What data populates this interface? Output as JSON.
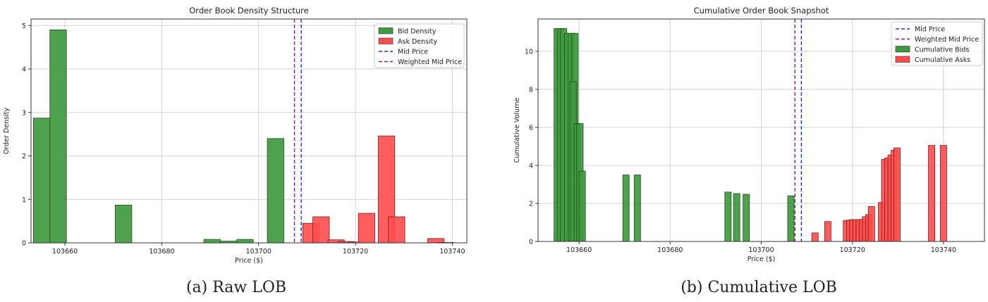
{
  "figure": {
    "captions": [
      "(a) Raw LOB",
      "(b) Cumulative LOB"
    ]
  },
  "colors": {
    "bid": "#3f9a3f",
    "bid_dark": "#2f7a2f",
    "ask": "#ff4c4c",
    "ask_dark": "#e03030",
    "mid": "#1f2fe0",
    "wmid": "#8b1a8b",
    "grid": "#d2d2d2"
  },
  "chart_data": [
    {
      "type": "bar",
      "title": "Order Book Density Structure",
      "xlabel": "Price ($)",
      "ylabel": "Order Density",
      "xlim": [
        103653,
        103743
      ],
      "ylim": [
        0,
        5.15
      ],
      "xticks": [
        103660,
        103680,
        103700,
        103720,
        103740
      ],
      "yticks": [
        0,
        1,
        2,
        3,
        4,
        5
      ],
      "grid": true,
      "legend_position": "top-right",
      "legend": [
        "Bid Density",
        "Ask Density",
        "Mid Price",
        "Weighted Mid Price"
      ],
      "bar_width": 3.4,
      "series": [
        {
          "name": "Bid Density",
          "bars": [
            {
              "x": 103655.2,
              "value": 2.87
            },
            {
              "x": 103658.6,
              "value": 4.9
            },
            {
              "x": 103672.1,
              "value": 0.87
            },
            {
              "x": 103690.4,
              "value": 0.08
            },
            {
              "x": 103693.8,
              "value": 0.04
            },
            {
              "x": 103697.2,
              "value": 0.08
            },
            {
              "x": 103703.5,
              "value": 2.4
            }
          ]
        },
        {
          "name": "Ask Density",
          "bars": [
            {
              "x": 103710.8,
              "value": 0.45
            },
            {
              "x": 103712.9,
              "value": 0.6
            },
            {
              "x": 103716.0,
              "value": 0.07
            },
            {
              "x": 103718.1,
              "value": 0.03
            },
            {
              "x": 103720.2,
              "value": 0.02
            },
            {
              "x": 103722.3,
              "value": 0.68
            },
            {
              "x": 103726.4,
              "value": 2.46
            },
            {
              "x": 103728.5,
              "value": 0.6
            },
            {
              "x": 103736.6,
              "value": 0.1
            },
            {
              "x": 103738.6,
              "value": 0.01
            }
          ]
        }
      ],
      "lines": [
        {
          "name": "Mid Price",
          "x": 103708.8,
          "style": "dashed"
        },
        {
          "name": "Weighted Mid Price",
          "x": 103707.4,
          "style": "dashed"
        }
      ]
    },
    {
      "type": "bar",
      "title": "Cumulative Order Book Snapshot",
      "xlabel": "Price ($)",
      "ylabel": "Cumulative Volume",
      "xlim": [
        103651,
        103749
      ],
      "ylim": [
        0,
        11.7
      ],
      "xticks": [
        103660,
        103680,
        103700,
        103720,
        103740
      ],
      "yticks": [
        0,
        2,
        4,
        6,
        8,
        10
      ],
      "grid": true,
      "legend_position": "top-right",
      "legend": [
        "Mid Price",
        "Weighted Mid Price",
        "Cumulative Bids",
        "Cumulative Asks"
      ],
      "bar_width": 1.4,
      "series": [
        {
          "name": "Cumulative Bids",
          "bars": [
            {
              "x": 103655.2,
              "value": 11.2
            },
            {
              "x": 103655.9,
              "value": 11.2
            },
            {
              "x": 103656.6,
              "value": 11.2
            },
            {
              "x": 103657.5,
              "value": 10.95
            },
            {
              "x": 103658.3,
              "value": 10.95
            },
            {
              "x": 103659.1,
              "value": 10.95
            },
            {
              "x": 103658.7,
              "value": 8.4
            },
            {
              "x": 103659.6,
              "value": 6.2
            },
            {
              "x": 103660.2,
              "value": 6.2
            },
            {
              "x": 103660.7,
              "value": 3.7
            },
            {
              "x": 103670.3,
              "value": 3.5
            },
            {
              "x": 103672.8,
              "value": 3.5
            },
            {
              "x": 103692.7,
              "value": 2.6
            },
            {
              "x": 103694.6,
              "value": 2.52
            },
            {
              "x": 103696.7,
              "value": 2.48
            },
            {
              "x": 103706.5,
              "value": 2.4
            }
          ]
        },
        {
          "name": "Cumulative Asks",
          "bars": [
            {
              "x": 103711.8,
              "value": 0.45
            },
            {
              "x": 103714.6,
              "value": 1.05
            },
            {
              "x": 103718.7,
              "value": 1.1
            },
            {
              "x": 103719.4,
              "value": 1.12
            },
            {
              "x": 103720.1,
              "value": 1.15
            },
            {
              "x": 103720.8,
              "value": 1.15
            },
            {
              "x": 103721.5,
              "value": 1.15
            },
            {
              "x": 103722.2,
              "value": 1.16
            },
            {
              "x": 103722.9,
              "value": 1.3
            },
            {
              "x": 103723.6,
              "value": 1.42
            },
            {
              "x": 103724.2,
              "value": 1.84
            },
            {
              "x": 103726.4,
              "value": 2.05
            },
            {
              "x": 103727.1,
              "value": 4.32
            },
            {
              "x": 103727.8,
              "value": 4.4
            },
            {
              "x": 103728.5,
              "value": 4.55
            },
            {
              "x": 103729.2,
              "value": 4.8
            },
            {
              "x": 103729.8,
              "value": 4.92
            },
            {
              "x": 103737.4,
              "value": 5.05
            },
            {
              "x": 103740.0,
              "value": 5.05
            }
          ]
        }
      ],
      "lines": [
        {
          "name": "Mid Price",
          "x": 103708.8,
          "style": "dashed"
        },
        {
          "name": "Weighted Mid Price",
          "x": 103707.4,
          "style": "dashed"
        }
      ]
    }
  ]
}
